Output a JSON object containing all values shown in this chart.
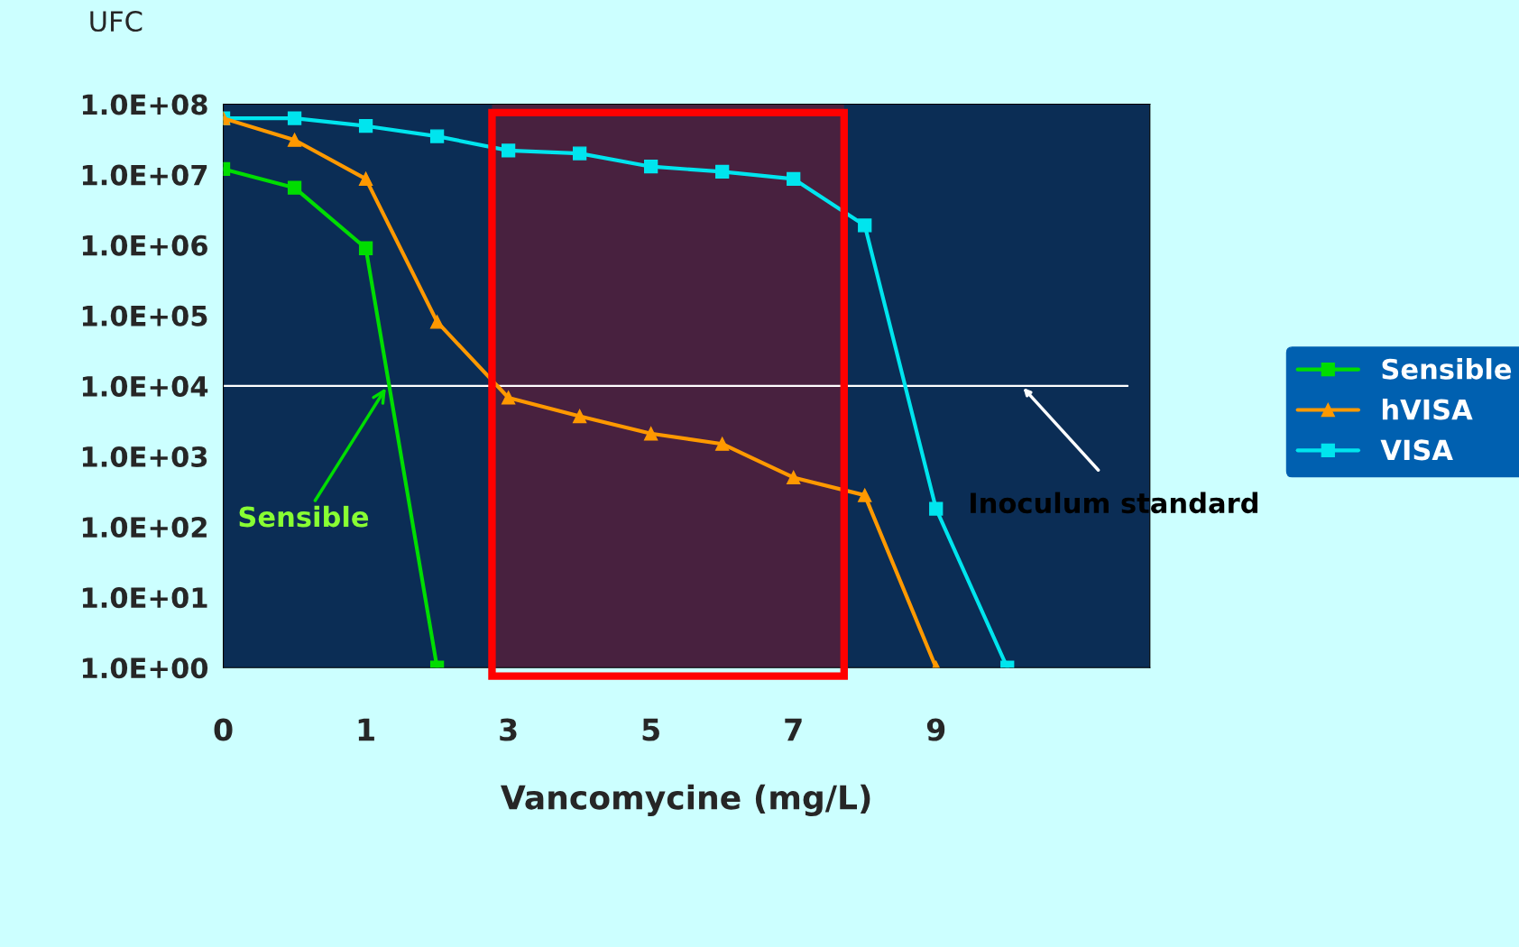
{
  "chart_data": {
    "type": "line",
    "ylabel": "UFC",
    "xlabel": "Vancomycine (mg/L)",
    "categories": [
      "0",
      null,
      "1",
      null,
      "3",
      null,
      "5",
      null,
      "7",
      null,
      "9",
      null,
      null,
      null
    ],
    "series": [
      {
        "name": "Sensible",
        "color": "#00dd00",
        "marker": "square",
        "values": [
          12000000,
          6500000,
          900000,
          1,
          null,
          null,
          null,
          null,
          null,
          null,
          null,
          null,
          null,
          null
        ]
      },
      {
        "name": "hVISA",
        "color": "#ff9900",
        "marker": "triangle",
        "values": [
          63000000,
          31000000,
          8700000,
          81000,
          6800,
          3700,
          2100,
          1500,
          500,
          280,
          1,
          null,
          null,
          null
        ]
      },
      {
        "name": "VISA",
        "color": "#00e5ee",
        "marker": "square",
        "values": [
          63000000,
          63000000,
          49000000,
          35000000,
          22000000,
          20000000,
          13000000,
          11000000,
          8700000,
          1900000,
          180,
          1,
          null,
          null
        ]
      }
    ],
    "log": "y",
    "ylim": [
      1,
      100000000
    ],
    "yticks": [
      {
        "value": 1,
        "label": "1.0E+00"
      },
      {
        "value": 10,
        "label": "1.0E+01"
      },
      {
        "value": 100,
        "label": "1.0E+02"
      },
      {
        "value": 1000,
        "label": "1.0E+03"
      },
      {
        "value": 10000,
        "label": "1.0E+04"
      },
      {
        "value": 100000,
        "label": "1.0E+05"
      },
      {
        "value": 1000000,
        "label": "1.0E+06"
      },
      {
        "value": 10000000,
        "label": "1.0E+07"
      },
      {
        "value": 100000000,
        "label": "1.0E+08"
      }
    ],
    "ref_lines": [
      {
        "axis": "y",
        "value": 10000,
        "color": "#ffffff"
      }
    ],
    "annotations": [
      "Sensible",
      "Inoculum standard"
    ],
    "legend": "right",
    "grid": false,
    "line_style": "solid"
  }
}
